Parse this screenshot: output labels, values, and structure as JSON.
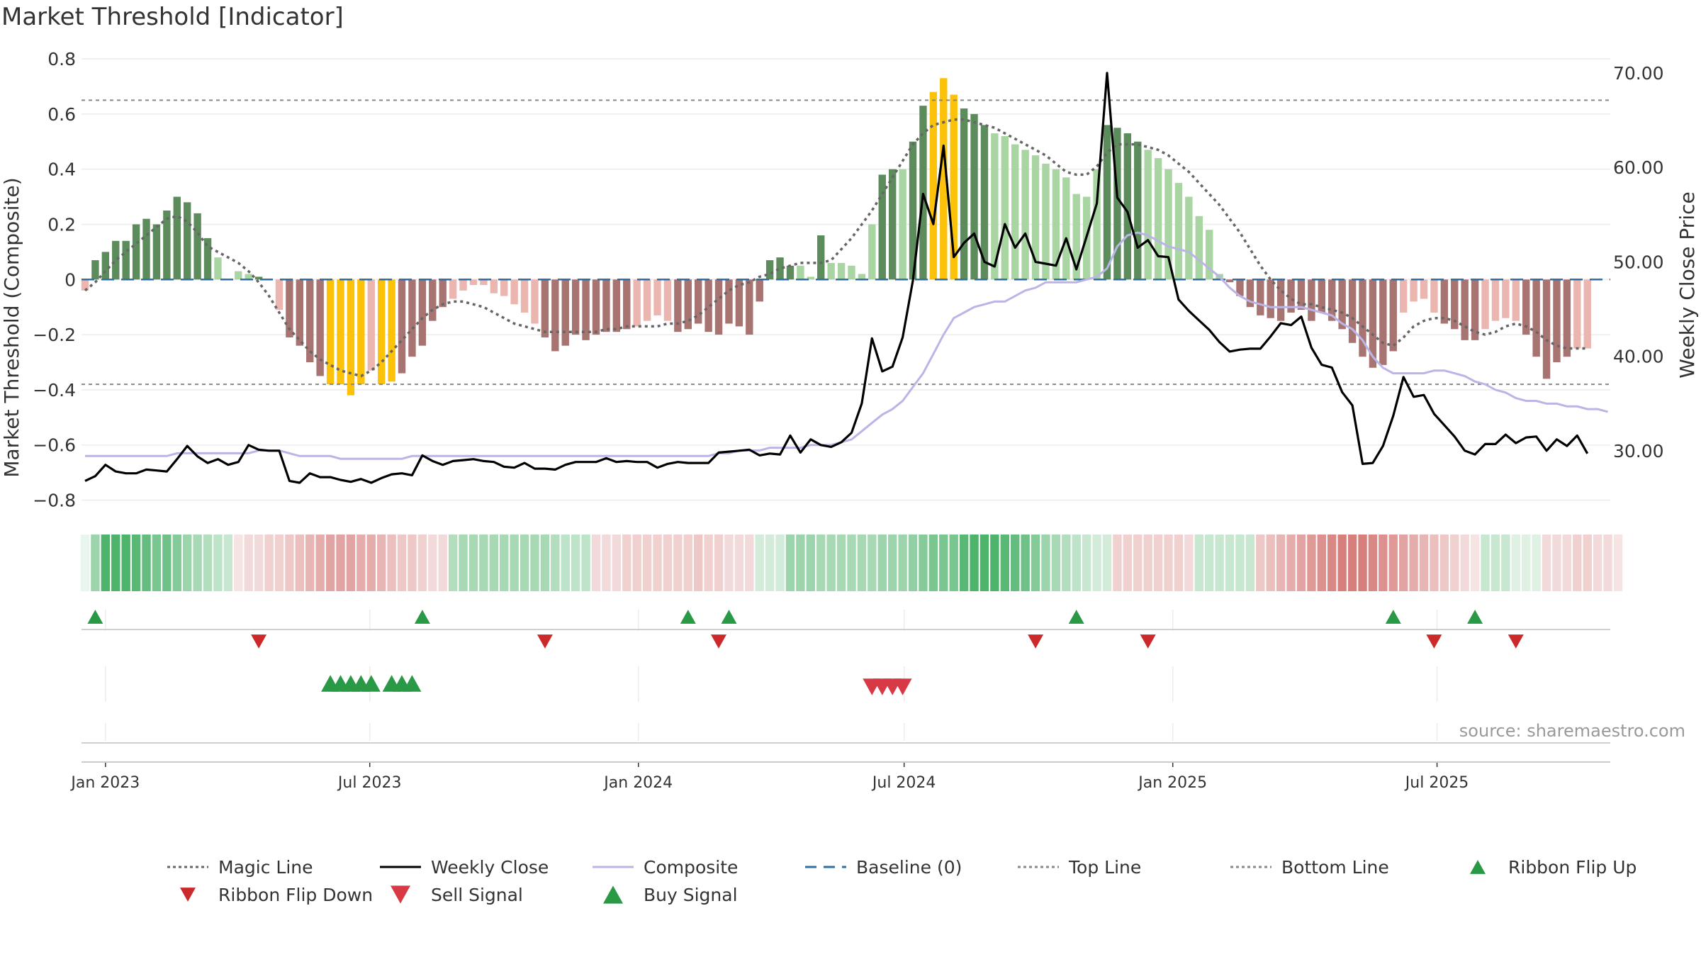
{
  "chart_data": {
    "type": "bar",
    "title": "Market Threshold [Indicator]",
    "ylabel": "Market Threshold (Composite)",
    "y2label": "Weekly Close Price",
    "ylim": [
      -0.85,
      0.8
    ],
    "y2lim": [
      23.3,
      71.5
    ],
    "y_ticks": [
      "0.8",
      "0.6",
      "0.4",
      "0.2",
      "0",
      "−0.2",
      "−0.4",
      "−0.6",
      "−0.8"
    ],
    "y2_ticks": [
      "70.00",
      "60.00",
      "50.00",
      "40.00",
      "30.00"
    ],
    "x_ticks": [
      "Jan 2023",
      "Jul 2023",
      "Jan 2024",
      "Jul 2024",
      "Jan 2025",
      "Jul 2025"
    ],
    "x_tick_dates": [
      "2023-01-01",
      "2023-07-01",
      "2024-01-01",
      "2024-07-01",
      "2025-01-01",
      "2025-07-01"
    ],
    "start_date": "2022-12-18",
    "week_interval_days": 7,
    "top_line": 0.65,
    "bottom_line": -0.38,
    "baseline": 0,
    "source": "source: sharemaestro.com",
    "grid": true,
    "legend_position": "bottom",
    "colors": {
      "strong_green": "#5c8c5c",
      "light_green": "#a8d5a2",
      "strong_red": "#a87472",
      "light_red": "#ecb6b0",
      "yellow": "#fbc209",
      "weekly_close": "#000000",
      "composite": "#bbb5e6",
      "magic_line": "#666666",
      "baseline": "#2f6fa6",
      "buy": "#2a9945",
      "sell": "#d83a45",
      "flip_down": "#cc2a2a"
    },
    "series": [
      {
        "name": "Magic Line",
        "type": "line",
        "values": [
          -0.04,
          -0.01,
          0.03,
          0.07,
          0.1,
          0.13,
          0.16,
          0.19,
          0.22,
          0.23,
          0.21,
          0.17,
          0.12,
          0.1,
          0.08,
          0.06,
          0.03,
          -0.01,
          -0.06,
          -0.12,
          -0.18,
          -0.22,
          -0.26,
          -0.29,
          -0.31,
          -0.33,
          -0.34,
          -0.35,
          -0.33,
          -0.3,
          -0.26,
          -0.22,
          -0.18,
          -0.14,
          -0.11,
          -0.09,
          -0.08,
          -0.08,
          -0.09,
          -0.1,
          -0.12,
          -0.14,
          -0.16,
          -0.17,
          -0.18,
          -0.19,
          -0.19,
          -0.19,
          -0.19,
          -0.19,
          -0.19,
          -0.18,
          -0.18,
          -0.17,
          -0.17,
          -0.17,
          -0.17,
          -0.16,
          -0.16,
          -0.15,
          -0.13,
          -0.1,
          -0.07,
          -0.04,
          -0.02,
          -0.01,
          0.01,
          0.02,
          0.04,
          0.05,
          0.06,
          0.06,
          0.06,
          0.07,
          0.11,
          0.15,
          0.2,
          0.25,
          0.31,
          0.37,
          0.43,
          0.49,
          0.53,
          0.56,
          0.57,
          0.58,
          0.58,
          0.57,
          0.56,
          0.55,
          0.53,
          0.51,
          0.49,
          0.47,
          0.45,
          0.42,
          0.39,
          0.38,
          0.38,
          0.41,
          0.46,
          0.49,
          0.49,
          0.49,
          0.48,
          0.47,
          0.45,
          0.42,
          0.39,
          0.35,
          0.31,
          0.27,
          0.22,
          0.17,
          0.11,
          0.05,
          0.0,
          -0.04,
          -0.07,
          -0.09,
          -0.09,
          -0.1,
          -0.11,
          -0.12,
          -0.14,
          -0.17,
          -0.2,
          -0.23,
          -0.24,
          -0.21,
          -0.17,
          -0.15,
          -0.14,
          -0.14,
          -0.15,
          -0.17,
          -0.19,
          -0.2,
          -0.19,
          -0.17,
          -0.16,
          -0.17,
          -0.19,
          -0.22,
          -0.24,
          -0.25,
          -0.25,
          -0.25
        ]
      },
      {
        "name": "Weekly Close",
        "type": "line",
        "axis": "right",
        "values": [
          26.8,
          27.3,
          28.5,
          27.8,
          27.6,
          27.6,
          28.0,
          27.9,
          27.8,
          29.1,
          30.5,
          29.4,
          28.7,
          29.1,
          28.5,
          28.8,
          30.6,
          30.1,
          30.0,
          30.0,
          26.8,
          26.6,
          27.6,
          27.2,
          27.2,
          26.9,
          26.7,
          27.0,
          26.6,
          27.1,
          27.5,
          27.6,
          27.4,
          29.5,
          28.9,
          28.5,
          28.9,
          29.0,
          29.1,
          28.9,
          28.8,
          28.3,
          28.2,
          28.7,
          28.1,
          28.1,
          28.0,
          28.5,
          28.8,
          28.8,
          28.8,
          29.2,
          28.8,
          28.9,
          28.8,
          28.8,
          28.2,
          28.6,
          28.8,
          28.7,
          28.7,
          28.7,
          29.8,
          29.9,
          30.0,
          30.1,
          29.5,
          29.7,
          29.6,
          31.6,
          29.8,
          31.2,
          30.6,
          30.4,
          30.9,
          31.9,
          35.0,
          41.9,
          38.4,
          38.9,
          42.0,
          48.0,
          57.2,
          54.0,
          62.3,
          50.5,
          52.0,
          53.0,
          50.0,
          49.5,
          54.0,
          51.5,
          53.0,
          50.0,
          49.8,
          49.6,
          52.5,
          49.2,
          52.7,
          56.2,
          70.0,
          56.8,
          55.3,
          51.5,
          52.3,
          50.6,
          50.5,
          46.0,
          44.8,
          43.8,
          42.8,
          41.5,
          40.5,
          40.7,
          40.8,
          40.8,
          42.1,
          43.5,
          43.3,
          44.2,
          40.9,
          39.1,
          38.8,
          36.2,
          34.8,
          28.6,
          28.7,
          30.5,
          33.7,
          37.8,
          35.7,
          35.9,
          33.9,
          32.7,
          31.5,
          30.0,
          29.6,
          30.7,
          30.7,
          31.7,
          30.8,
          31.4,
          31.5,
          30.0,
          31.2,
          30.5,
          31.6,
          29.7
        ]
      },
      {
        "name": "Composite",
        "type": "line",
        "values": [
          -0.64,
          -0.64,
          -0.64,
          -0.64,
          -0.64,
          -0.64,
          -0.64,
          -0.64,
          -0.64,
          -0.63,
          -0.63,
          -0.63,
          -0.63,
          -0.63,
          -0.63,
          -0.63,
          -0.63,
          -0.62,
          -0.62,
          -0.62,
          -0.63,
          -0.64,
          -0.64,
          -0.64,
          -0.64,
          -0.65,
          -0.65,
          -0.65,
          -0.65,
          -0.65,
          -0.65,
          -0.65,
          -0.64,
          -0.64,
          -0.64,
          -0.64,
          -0.64,
          -0.64,
          -0.64,
          -0.64,
          -0.64,
          -0.64,
          -0.64,
          -0.64,
          -0.64,
          -0.64,
          -0.64,
          -0.64,
          -0.64,
          -0.64,
          -0.64,
          -0.64,
          -0.64,
          -0.64,
          -0.64,
          -0.64,
          -0.64,
          -0.64,
          -0.64,
          -0.64,
          -0.64,
          -0.64,
          -0.63,
          -0.63,
          -0.62,
          -0.62,
          -0.62,
          -0.61,
          -0.61,
          -0.61,
          -0.61,
          -0.6,
          -0.6,
          -0.6,
          -0.59,
          -0.58,
          -0.55,
          -0.52,
          -0.49,
          -0.47,
          -0.44,
          -0.39,
          -0.34,
          -0.27,
          -0.2,
          -0.14,
          -0.12,
          -0.1,
          -0.09,
          -0.08,
          -0.08,
          -0.06,
          -0.04,
          -0.03,
          -0.01,
          -0.01,
          -0.01,
          -0.01,
          0.0,
          0.01,
          0.04,
          0.12,
          0.16,
          0.17,
          0.16,
          0.14,
          0.12,
          0.11,
          0.1,
          0.07,
          0.04,
          0.01,
          -0.03,
          -0.06,
          -0.08,
          -0.09,
          -0.1,
          -0.1,
          -0.1,
          -0.1,
          -0.11,
          -0.12,
          -0.13,
          -0.16,
          -0.18,
          -0.22,
          -0.28,
          -0.32,
          -0.34,
          -0.34,
          -0.34,
          -0.34,
          -0.33,
          -0.33,
          -0.34,
          -0.35,
          -0.37,
          -0.38,
          -0.4,
          -0.41,
          -0.43,
          -0.44,
          -0.44,
          -0.45,
          -0.45,
          -0.46,
          -0.46,
          -0.47,
          -0.47,
          -0.48
        ]
      },
      {
        "name": "Composite Bars",
        "type": "bar",
        "values": [
          -0.04,
          0.07,
          0.1,
          0.14,
          0.14,
          0.2,
          0.22,
          0.2,
          0.25,
          0.3,
          0.28,
          0.24,
          0.15,
          0.08,
          0.0,
          0.03,
          0.02,
          0.01,
          0.0,
          -0.11,
          -0.21,
          -0.24,
          -0.3,
          -0.35,
          -0.38,
          -0.38,
          -0.42,
          -0.38,
          -0.33,
          -0.38,
          -0.37,
          -0.34,
          -0.28,
          -0.24,
          -0.15,
          -0.1,
          -0.07,
          -0.04,
          -0.02,
          -0.02,
          -0.05,
          -0.06,
          -0.09,
          -0.12,
          -0.16,
          -0.21,
          -0.26,
          -0.24,
          -0.2,
          -0.22,
          -0.2,
          -0.19,
          -0.19,
          -0.18,
          -0.17,
          -0.15,
          -0.13,
          -0.15,
          -0.19,
          -0.18,
          -0.16,
          -0.19,
          -0.2,
          -0.16,
          -0.17,
          -0.2,
          -0.08,
          0.07,
          0.08,
          0.05,
          0.05,
          0.01,
          0.16,
          0.06,
          0.06,
          0.05,
          0.02,
          0.2,
          0.38,
          0.4,
          0.4,
          0.5,
          0.63,
          0.68,
          0.73,
          0.67,
          0.62,
          0.6,
          0.56,
          0.53,
          0.52,
          0.49,
          0.47,
          0.45,
          0.42,
          0.4,
          0.37,
          0.31,
          0.3,
          0.4,
          0.56,
          0.55,
          0.53,
          0.5,
          0.47,
          0.44,
          0.4,
          0.35,
          0.3,
          0.23,
          0.18,
          0.02,
          -0.01,
          -0.06,
          -0.1,
          -0.13,
          -0.14,
          -0.15,
          -0.12,
          -0.11,
          -0.15,
          -0.12,
          -0.15,
          -0.18,
          -0.23,
          -0.28,
          -0.32,
          -0.31,
          -0.26,
          -0.12,
          -0.08,
          -0.07,
          -0.12,
          -0.16,
          -0.18,
          -0.22,
          -0.22,
          -0.18,
          -0.15,
          -0.14,
          -0.15,
          -0.2,
          -0.28,
          -0.36,
          -0.3,
          -0.28,
          -0.25,
          -0.25
        ],
        "highlight_indices": [
          24,
          25,
          26,
          27,
          29,
          30,
          83,
          84,
          85
        ]
      },
      {
        "name": "Ribbon",
        "type": "heatmap",
        "values": [
          0.1,
          0.45,
          0.8,
          0.8,
          0.8,
          0.75,
          0.7,
          0.6,
          0.65,
          0.55,
          0.45,
          0.4,
          0.35,
          0.3,
          0.25,
          -0.15,
          -0.2,
          -0.2,
          -0.25,
          -0.25,
          -0.3,
          -0.35,
          -0.4,
          -0.45,
          -0.5,
          -0.5,
          -0.5,
          -0.45,
          -0.45,
          -0.4,
          -0.35,
          -0.3,
          -0.3,
          -0.25,
          -0.2,
          -0.2,
          0.35,
          0.4,
          0.4,
          0.4,
          0.4,
          0.4,
          0.4,
          0.4,
          0.4,
          0.4,
          0.35,
          0.3,
          0.3,
          0.3,
          -0.2,
          -0.2,
          -0.2,
          -0.25,
          -0.25,
          -0.25,
          -0.25,
          -0.25,
          -0.25,
          -0.25,
          -0.3,
          -0.25,
          -0.25,
          -0.2,
          -0.2,
          -0.2,
          0.2,
          0.2,
          0.2,
          0.45,
          0.45,
          0.45,
          0.4,
          0.4,
          0.4,
          0.4,
          0.4,
          0.4,
          0.45,
          0.45,
          0.45,
          0.5,
          0.55,
          0.6,
          0.6,
          0.6,
          0.75,
          0.8,
          0.8,
          0.8,
          0.75,
          0.7,
          0.65,
          0.55,
          0.45,
          0.4,
          0.35,
          0.3,
          0.25,
          0.2,
          0.2,
          -0.25,
          -0.25,
          -0.25,
          -0.25,
          -0.25,
          -0.25,
          -0.25,
          -0.2,
          0.25,
          0.25,
          0.25,
          0.25,
          0.25,
          0.25,
          -0.3,
          -0.35,
          -0.4,
          -0.45,
          -0.5,
          -0.55,
          -0.6,
          -0.65,
          -0.7,
          -0.7,
          -0.7,
          -0.65,
          -0.6,
          -0.55,
          -0.5,
          -0.45,
          -0.4,
          -0.35,
          -0.3,
          -0.25,
          -0.2,
          -0.15,
          0.25,
          0.25,
          0.25,
          0.15,
          0.15,
          0.15,
          -0.2,
          -0.2,
          -0.2,
          -0.25,
          -0.25,
          -0.2,
          -0.2,
          -0.15
        ]
      }
    ],
    "ribbon_flip_up_dates": [
      "2022-12-25",
      "2023-08-06",
      "2024-02-04",
      "2024-03-03",
      "2024-10-27",
      "2025-06-01",
      "2025-07-27"
    ],
    "ribbon_flip_down_dates": [
      "2023-04-16",
      "2023-10-29",
      "2024-02-25",
      "2024-09-29",
      "2024-12-15",
      "2025-06-29",
      "2025-08-24"
    ],
    "buy_signal_dates": [
      "2023-06-04",
      "2023-06-11",
      "2023-06-18",
      "2023-06-25",
      "2023-07-02",
      "2023-07-16",
      "2023-07-23",
      "2023-07-30"
    ],
    "sell_signal_dates": [
      "2024-06-09",
      "2024-06-16",
      "2024-06-23",
      "2024-06-30"
    ],
    "legend": [
      {
        "label": "Magic Line",
        "marker": "dotted-line",
        "color": "#666666"
      },
      {
        "label": "Weekly Close",
        "marker": "solid-line",
        "color": "#000000"
      },
      {
        "label": "Composite",
        "marker": "solid-line",
        "color": "#bbb5e6"
      },
      {
        "label": "Baseline (0)",
        "marker": "dashed-line",
        "color": "#2f6fa6"
      },
      {
        "label": "Top Line",
        "marker": "dotted-line",
        "color": "#888888"
      },
      {
        "label": "Bottom Line",
        "marker": "dotted-line",
        "color": "#888888"
      },
      {
        "label": "Ribbon Flip Up",
        "marker": "triangle-up",
        "color": "#2a9945"
      },
      {
        "label": "Ribbon Flip Down",
        "marker": "triangle-down",
        "color": "#cc2a2a"
      },
      {
        "label": "Sell Signal",
        "marker": "triangle-down",
        "color": "#d83a45"
      },
      {
        "label": "Buy Signal",
        "marker": "triangle-up",
        "color": "#2a9945"
      }
    ]
  }
}
